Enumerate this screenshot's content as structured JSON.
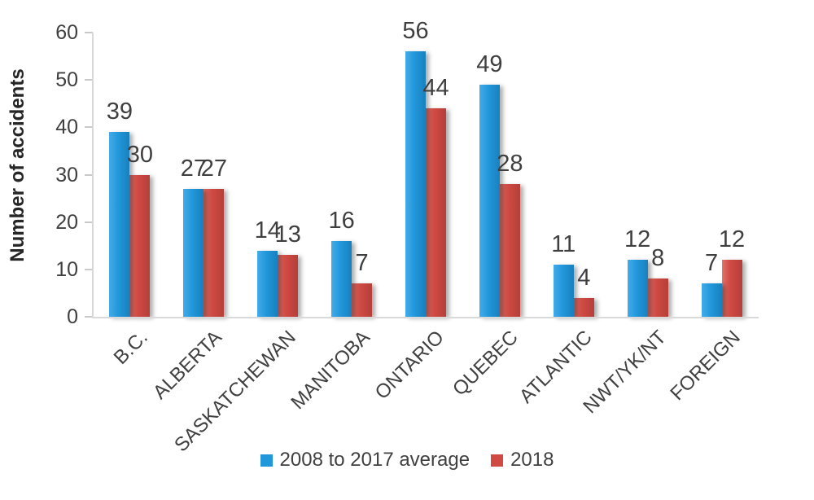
{
  "chart_data": {
    "type": "bar",
    "title": "",
    "xlabel": "",
    "ylabel": "Number of accidents",
    "categories": [
      "B.C.",
      "ALBERTA",
      "SASKATCHEWAN",
      "MANITOBA",
      "ONTARIO",
      "QUEBEC",
      "ATLANTIC",
      "NWT/YK/NT",
      "FOREIGN"
    ],
    "series": [
      {
        "name": "2008 to 2017 average",
        "color": "#2197db",
        "values": [
          39,
          27,
          14,
          16,
          56,
          49,
          11,
          12,
          7
        ]
      },
      {
        "name": "2018",
        "color": "#d04a43",
        "values": [
          30,
          27,
          13,
          7,
          44,
          28,
          4,
          8,
          12
        ]
      }
    ],
    "ylim": [
      0,
      60
    ],
    "yticks": [
      0,
      10,
      20,
      30,
      40,
      50,
      60
    ],
    "grid": false,
    "data_labels": true,
    "legend_position": "bottom"
  },
  "colors": {
    "series_blue": "#2197db",
    "series_red": "#d04a43",
    "axis_line": "#d9d9d9",
    "tick_mark": "#c9c9c9",
    "text": "#404040",
    "axis_title": "#262626",
    "background": "#ffffff"
  }
}
